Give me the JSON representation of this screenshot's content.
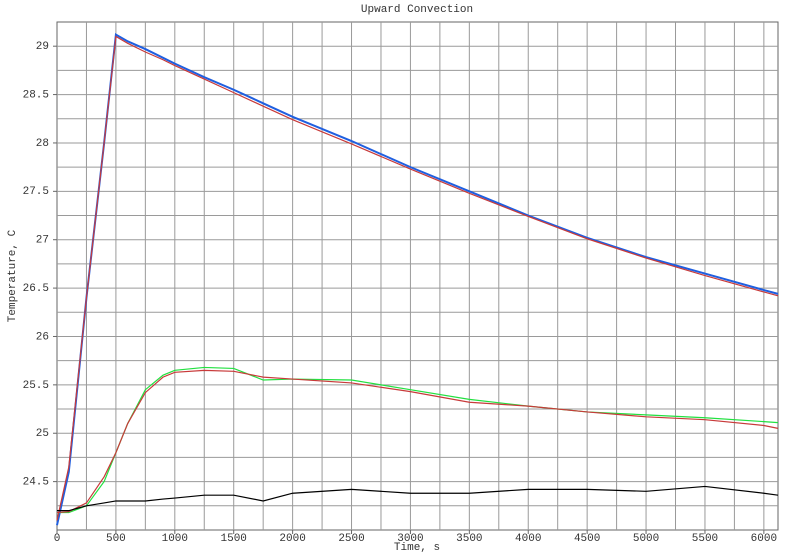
{
  "chart_data": {
    "type": "line",
    "title": "Upward Convection",
    "xlabel": "Time, s",
    "ylabel": "Temperature, C",
    "x": [
      0,
      100,
      250,
      400,
      500,
      600,
      750,
      900,
      1000,
      1250,
      1500,
      1750,
      2000,
      2500,
      3000,
      3500,
      4000,
      4500,
      5000,
      5500,
      6000,
      6120
    ],
    "series": [
      {
        "color": "#1f5fe0",
        "values": [
          24.05,
          24.6,
          26.4,
          28.0,
          29.12,
          29.05,
          28.97,
          28.88,
          28.82,
          28.68,
          28.55,
          28.41,
          28.27,
          28.02,
          27.75,
          27.5,
          27.25,
          27.02,
          26.82,
          26.65,
          26.48,
          26.44
        ]
      },
      {
        "color": "#c83a3a",
        "values": [
          24.1,
          24.65,
          26.4,
          28.0,
          29.1,
          29.03,
          28.94,
          28.86,
          28.8,
          28.66,
          28.52,
          28.38,
          28.24,
          27.99,
          27.73,
          27.48,
          27.24,
          27.01,
          26.81,
          26.63,
          26.46,
          26.42
        ]
      },
      {
        "color": "#22e040",
        "values": [
          24.18,
          24.18,
          24.25,
          24.5,
          24.8,
          25.1,
          25.45,
          25.6,
          25.65,
          25.68,
          25.67,
          25.55,
          25.56,
          25.55,
          25.45,
          25.35,
          25.28,
          25.22,
          25.19,
          25.16,
          25.12,
          25.11
        ]
      },
      {
        "color": "#c83a3a",
        "values": [
          24.18,
          24.19,
          24.28,
          24.55,
          24.8,
          25.1,
          25.42,
          25.58,
          25.63,
          25.65,
          25.64,
          25.58,
          25.56,
          25.52,
          25.43,
          25.32,
          25.28,
          25.22,
          25.17,
          25.14,
          25.08,
          25.05
        ]
      },
      {
        "color": "#000000",
        "values": [
          24.2,
          24.2,
          24.25,
          24.28,
          24.3,
          24.3,
          24.3,
          24.32,
          24.33,
          24.36,
          24.36,
          24.3,
          24.38,
          24.42,
          24.38,
          24.38,
          24.42,
          24.42,
          24.4,
          24.45,
          24.38,
          24.36
        ]
      }
    ],
    "xlim": [
      0,
      6120
    ],
    "ylim": [
      24,
      29.25
    ],
    "xticks": [
      0,
      500,
      1000,
      1500,
      2000,
      2500,
      3000,
      3500,
      4000,
      4500,
      5000,
      5500,
      6000
    ],
    "yticks": [
      24.5,
      25,
      25.5,
      26,
      26.5,
      27,
      27.5,
      28,
      28.5,
      29
    ],
    "xgrid": [
      250,
      500,
      750,
      1000,
      1250,
      1500,
      1750,
      2000,
      2250,
      2500,
      2750,
      3000,
      3250,
      3500,
      3750,
      4000,
      4250,
      4500,
      4750,
      5000,
      5250,
      5500,
      5750,
      6000
    ],
    "ygrid": [
      24.25,
      24.5,
      24.75,
      25,
      25.25,
      25.5,
      25.75,
      26,
      26.25,
      26.5,
      26.75,
      27,
      27.25,
      27.5,
      27.75,
      28,
      28.25,
      28.5,
      28.75,
      29
    ],
    "grid": true
  }
}
